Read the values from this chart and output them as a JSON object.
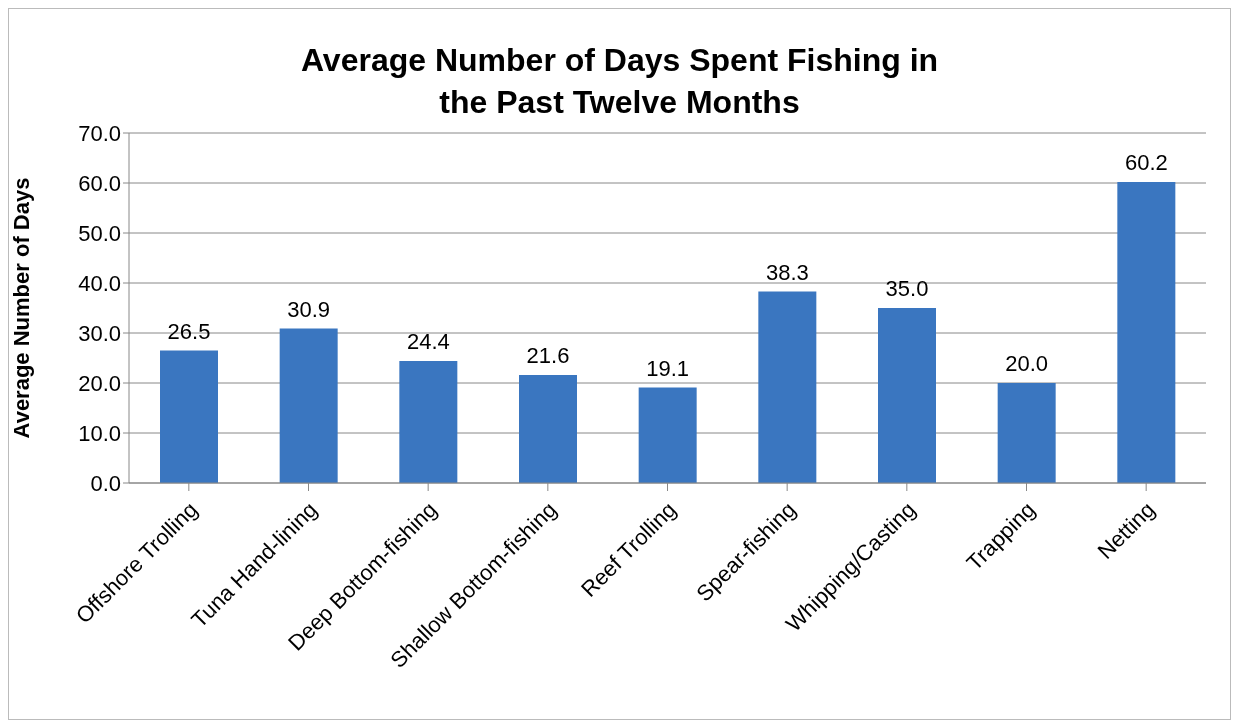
{
  "chart_data": {
    "type": "bar",
    "title": "Average Number of Days Spent Fishing in the Past Twelve Months",
    "ylabel": "Average Number of Days",
    "categories": [
      "Offshore Trolling",
      "Tuna Hand-lining",
      "Deep Bottom-fishing",
      "Shallow Bottom-fishing",
      "Reef Trolling",
      "Spear-fishing",
      "Whipping/Casting",
      "Trapping",
      "Netting"
    ],
    "values": [
      26.5,
      30.9,
      24.4,
      21.6,
      19.1,
      38.3,
      35.0,
      20.0,
      60.2
    ],
    "value_labels": [
      "26.5",
      "30.9",
      "24.4",
      "21.6",
      "19.1",
      "38.3",
      "35.0",
      "20.0",
      "60.2"
    ],
    "color": "#3a76c0",
    "ylim": [
      0,
      70
    ],
    "yticks": [
      {
        "value": 0,
        "label": "0.0"
      },
      {
        "value": 10,
        "label": "10.0"
      },
      {
        "value": 20,
        "label": "20.0"
      },
      {
        "value": 30,
        "label": "30.0"
      },
      {
        "value": 40,
        "label": "40.0"
      },
      {
        "value": 50,
        "label": "50.0"
      },
      {
        "value": 60,
        "label": "60.0"
      },
      {
        "value": 70,
        "label": "70.0"
      }
    ],
    "grid": "y",
    "legend": false
  }
}
